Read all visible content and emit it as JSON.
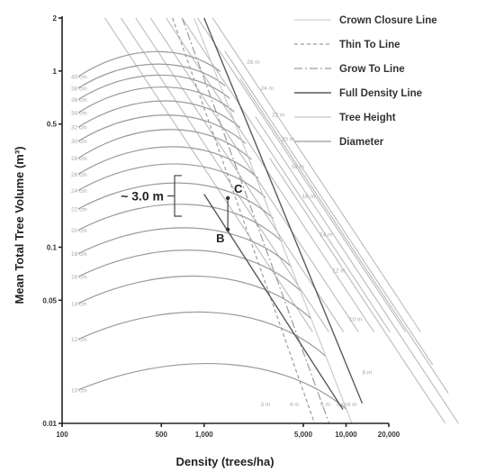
{
  "chart_data": {
    "type": "line",
    "xlabel": "Density (trees/ha)",
    "ylabel": "Mean Total Tree Volume (m³)",
    "x_scale": "log",
    "y_scale": "log",
    "xlim": [
      100,
      20000
    ],
    "ylim": [
      0.01,
      2
    ],
    "x_ticks": [
      100,
      500,
      1000,
      5000,
      10000,
      20000
    ],
    "x_tick_labels": [
      "100",
      "500",
      "1,000",
      "5,000",
      "10,000",
      "20,000"
    ],
    "y_ticks": [
      0.01,
      0.05,
      0.1,
      0.5,
      1,
      2
    ],
    "y_tick_labels": [
      "0.01",
      "0.05",
      "0.1",
      "0.5",
      "1",
      "2"
    ],
    "legend": {
      "position": "top-right",
      "entries": [
        {
          "label": "Crown Closure Line",
          "style": "crown",
          "color": "#c4c4c4"
        },
        {
          "label": "Thin To Line",
          "style": "thin",
          "color": "#9c9c9c"
        },
        {
          "label": "Grow To Line",
          "style": "grow",
          "color": "#9c9c9c"
        },
        {
          "label": "Full Density Line",
          "style": "full",
          "color": "#5a5a5a"
        },
        {
          "label": "Tree Height",
          "style": "height",
          "color": "#b4b4b4"
        },
        {
          "label": "Diameter",
          "style": "diameter",
          "color": "#9a9a9a"
        }
      ]
    },
    "max_density_line": {
      "points": [
        [
          1000,
          2
        ],
        [
          13000,
          0.013
        ]
      ]
    },
    "crown_closure_line": {
      "points": [
        [
          850,
          2
        ],
        [
          11000,
          0.01
        ]
      ]
    },
    "full_density_line": {
      "points": [
        [
          1000,
          0.2
        ],
        [
          9500,
          0.012
        ]
      ]
    },
    "grow_to_line": {
      "points": [
        [
          700,
          2
        ],
        [
          7600,
          0.01
        ]
      ]
    },
    "thin_to_line": {
      "points": [
        [
          600,
          2
        ],
        [
          6000,
          0.01
        ]
      ]
    },
    "diameter_series": [
      {
        "label": "40 cm",
        "y_start": 0.93,
        "y_end": 1.35
      },
      {
        "label": "38 cm",
        "y_start": 0.8,
        "y_end": 1.15
      },
      {
        "label": "36 cm",
        "y_start": 0.69,
        "y_end": 1.0
      },
      {
        "label": "34 cm",
        "y_start": 0.58,
        "y_end": 0.86
      },
      {
        "label": "32 cm",
        "y_start": 0.48,
        "y_end": 0.72
      },
      {
        "label": "30 cm",
        "y_start": 0.4,
        "y_end": 0.6
      },
      {
        "label": "28 cm",
        "y_start": 0.32,
        "y_end": 0.5
      },
      {
        "label": "26 cm",
        "y_start": 0.26,
        "y_end": 0.4
      },
      {
        "label": "24 cm",
        "y_start": 0.21,
        "y_end": 0.32
      },
      {
        "label": "22 cm",
        "y_start": 0.165,
        "y_end": 0.25
      },
      {
        "label": "20 cm",
        "y_start": 0.125,
        "y_end": 0.19
      },
      {
        "label": "18 cm",
        "y_start": 0.092,
        "y_end": 0.14
      },
      {
        "label": "16 cm",
        "y_start": 0.068,
        "y_end": 0.105
      },
      {
        "label": "14 cm",
        "y_start": 0.048,
        "y_end": 0.075
      },
      {
        "label": "12 cm",
        "y_start": 0.03,
        "y_end": 0.047
      },
      {
        "label": "10 cm",
        "y_start": 0.0155,
        "y_end": 0.024
      }
    ],
    "height_labels": [
      {
        "label": "26 m",
        "x": 2000,
        "y": 1.1
      },
      {
        "label": "24 m",
        "x": 2500,
        "y": 0.78
      },
      {
        "label": "22 m",
        "x": 3000,
        "y": 0.55
      },
      {
        "label": "20 m",
        "x": 3500,
        "y": 0.4
      },
      {
        "label": "18 m",
        "x": 4100,
        "y": 0.28
      },
      {
        "label": "16 m",
        "x": 4900,
        "y": 0.19
      },
      {
        "label": "14 m",
        "x": 6500,
        "y": 0.115
      },
      {
        "label": "12 m",
        "x": 8000,
        "y": 0.072
      },
      {
        "label": "10 m",
        "x": 10500,
        "y": 0.038
      },
      {
        "label": "8 m",
        "x": 13000,
        "y": 0.019
      },
      {
        "label": "6 m",
        "x": 10200,
        "y": 0.0125
      },
      {
        "label": "6 m",
        "x": 8600,
        "y": 0.0125
      },
      {
        "label": "5 m",
        "x": 6600,
        "y": 0.0125
      },
      {
        "label": "4 m",
        "x": 4000,
        "y": 0.0125
      },
      {
        "label": "3 m",
        "x": 2500,
        "y": 0.0125
      }
    ],
    "height_line_origins": [
      [
        200,
        2
      ],
      [
        260,
        2
      ],
      [
        330,
        2
      ],
      [
        420,
        2
      ],
      [
        540,
        2
      ],
      [
        700,
        2
      ],
      [
        900,
        2
      ],
      [
        1150,
        2
      ],
      [
        1400,
        1.3
      ],
      [
        1800,
        0.9
      ],
      [
        2300,
        0.55
      ],
      [
        2900,
        0.32
      ]
    ],
    "points": [
      {
        "label": "C",
        "x": 1470,
        "y": 0.19
      },
      {
        "label": "B",
        "x": 1470,
        "y": 0.126
      }
    ],
    "annotation": {
      "text": "~ 3.0 m",
      "y_low": 0.15,
      "y_high": 0.255
    }
  }
}
